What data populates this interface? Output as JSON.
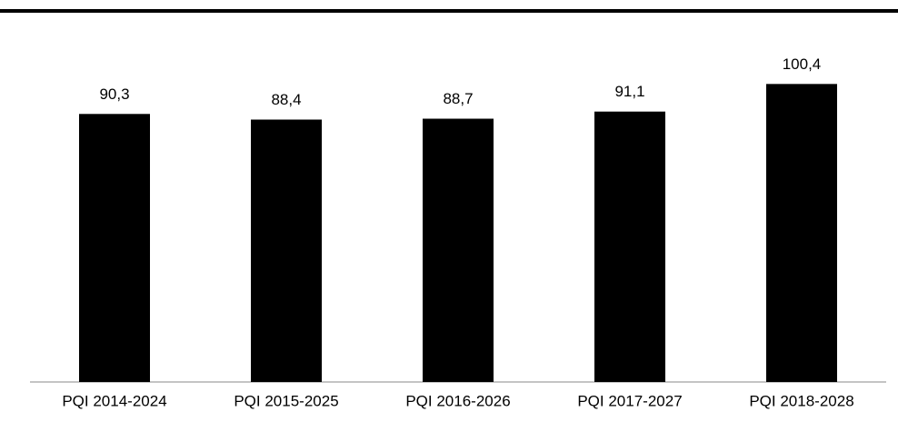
{
  "chart_data": {
    "type": "bar",
    "categories": [
      "PQI 2014-2024",
      "PQI 2015-2025",
      "PQI 2016-2026",
      "PQI 2017-2027",
      "PQI 2018-2028"
    ],
    "values": [
      90.3,
      88.4,
      88.7,
      91.1,
      100.4
    ],
    "value_labels": [
      "90,3",
      "88,4",
      "88,7",
      "91,1",
      "100,4"
    ],
    "color": "#000000",
    "ylim": [
      0,
      110
    ]
  }
}
